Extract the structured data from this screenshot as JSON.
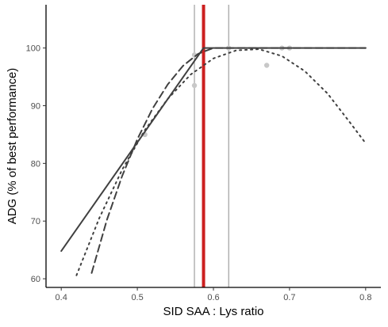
{
  "chart_data": {
    "type": "line",
    "xlabel": "SID SAA : Lys ratio",
    "ylabel": "ADG (% of best performance)",
    "xlim": [
      0.38,
      0.82
    ],
    "ylim": [
      58.5,
      107.5
    ],
    "x_ticks": [
      0.4,
      0.5,
      0.6,
      0.7,
      0.8
    ],
    "y_ticks": [
      60,
      70,
      80,
      90,
      100
    ],
    "grid": false,
    "colors": {
      "points": "#c8c8c8",
      "lines": "#404040",
      "breakpoint": "#cc1f1f",
      "ci_lines": "#8c8c8c"
    },
    "observations": [
      {
        "x": 0.51,
        "y": 85.0
      },
      {
        "x": 0.575,
        "y": 98.8
      },
      {
        "x": 0.575,
        "y": 93.5
      },
      {
        "x": 0.62,
        "y": 100.0
      },
      {
        "x": 0.67,
        "y": 97.0
      },
      {
        "x": 0.69,
        "y": 100.0
      },
      {
        "x": 0.7,
        "y": 100.0
      }
    ],
    "series": [
      {
        "style": "solid",
        "x": [
          0.4,
          0.587,
          0.8
        ],
        "y": [
          64.8,
          100.0,
          100.0
        ]
      },
      {
        "style": "dashed",
        "x": [
          0.44,
          0.46,
          0.48,
          0.5,
          0.52,
          0.54,
          0.56,
          0.58,
          0.6,
          0.62,
          0.8
        ],
        "y": [
          61.0,
          70.2,
          77.8,
          84.2,
          89.5,
          93.7,
          96.9,
          99.0,
          100.0,
          100.0,
          100.0
        ]
      },
      {
        "style": "dotted",
        "x": [
          0.42,
          0.45,
          0.48,
          0.51,
          0.54,
          0.57,
          0.6,
          0.63,
          0.66,
          0.69,
          0.72,
          0.75,
          0.78,
          0.8
        ],
        "y": [
          60.6,
          70.5,
          78.9,
          85.8,
          91.2,
          95.4,
          98.2,
          99.6,
          99.8,
          98.6,
          96.0,
          92.1,
          87.0,
          83.5
        ]
      }
    ],
    "vertical_lines": [
      {
        "x": 0.587,
        "role": "breakpoint"
      },
      {
        "x": 0.575,
        "role": "ci_lower"
      },
      {
        "x": 0.62,
        "role": "ci_upper"
      }
    ]
  }
}
